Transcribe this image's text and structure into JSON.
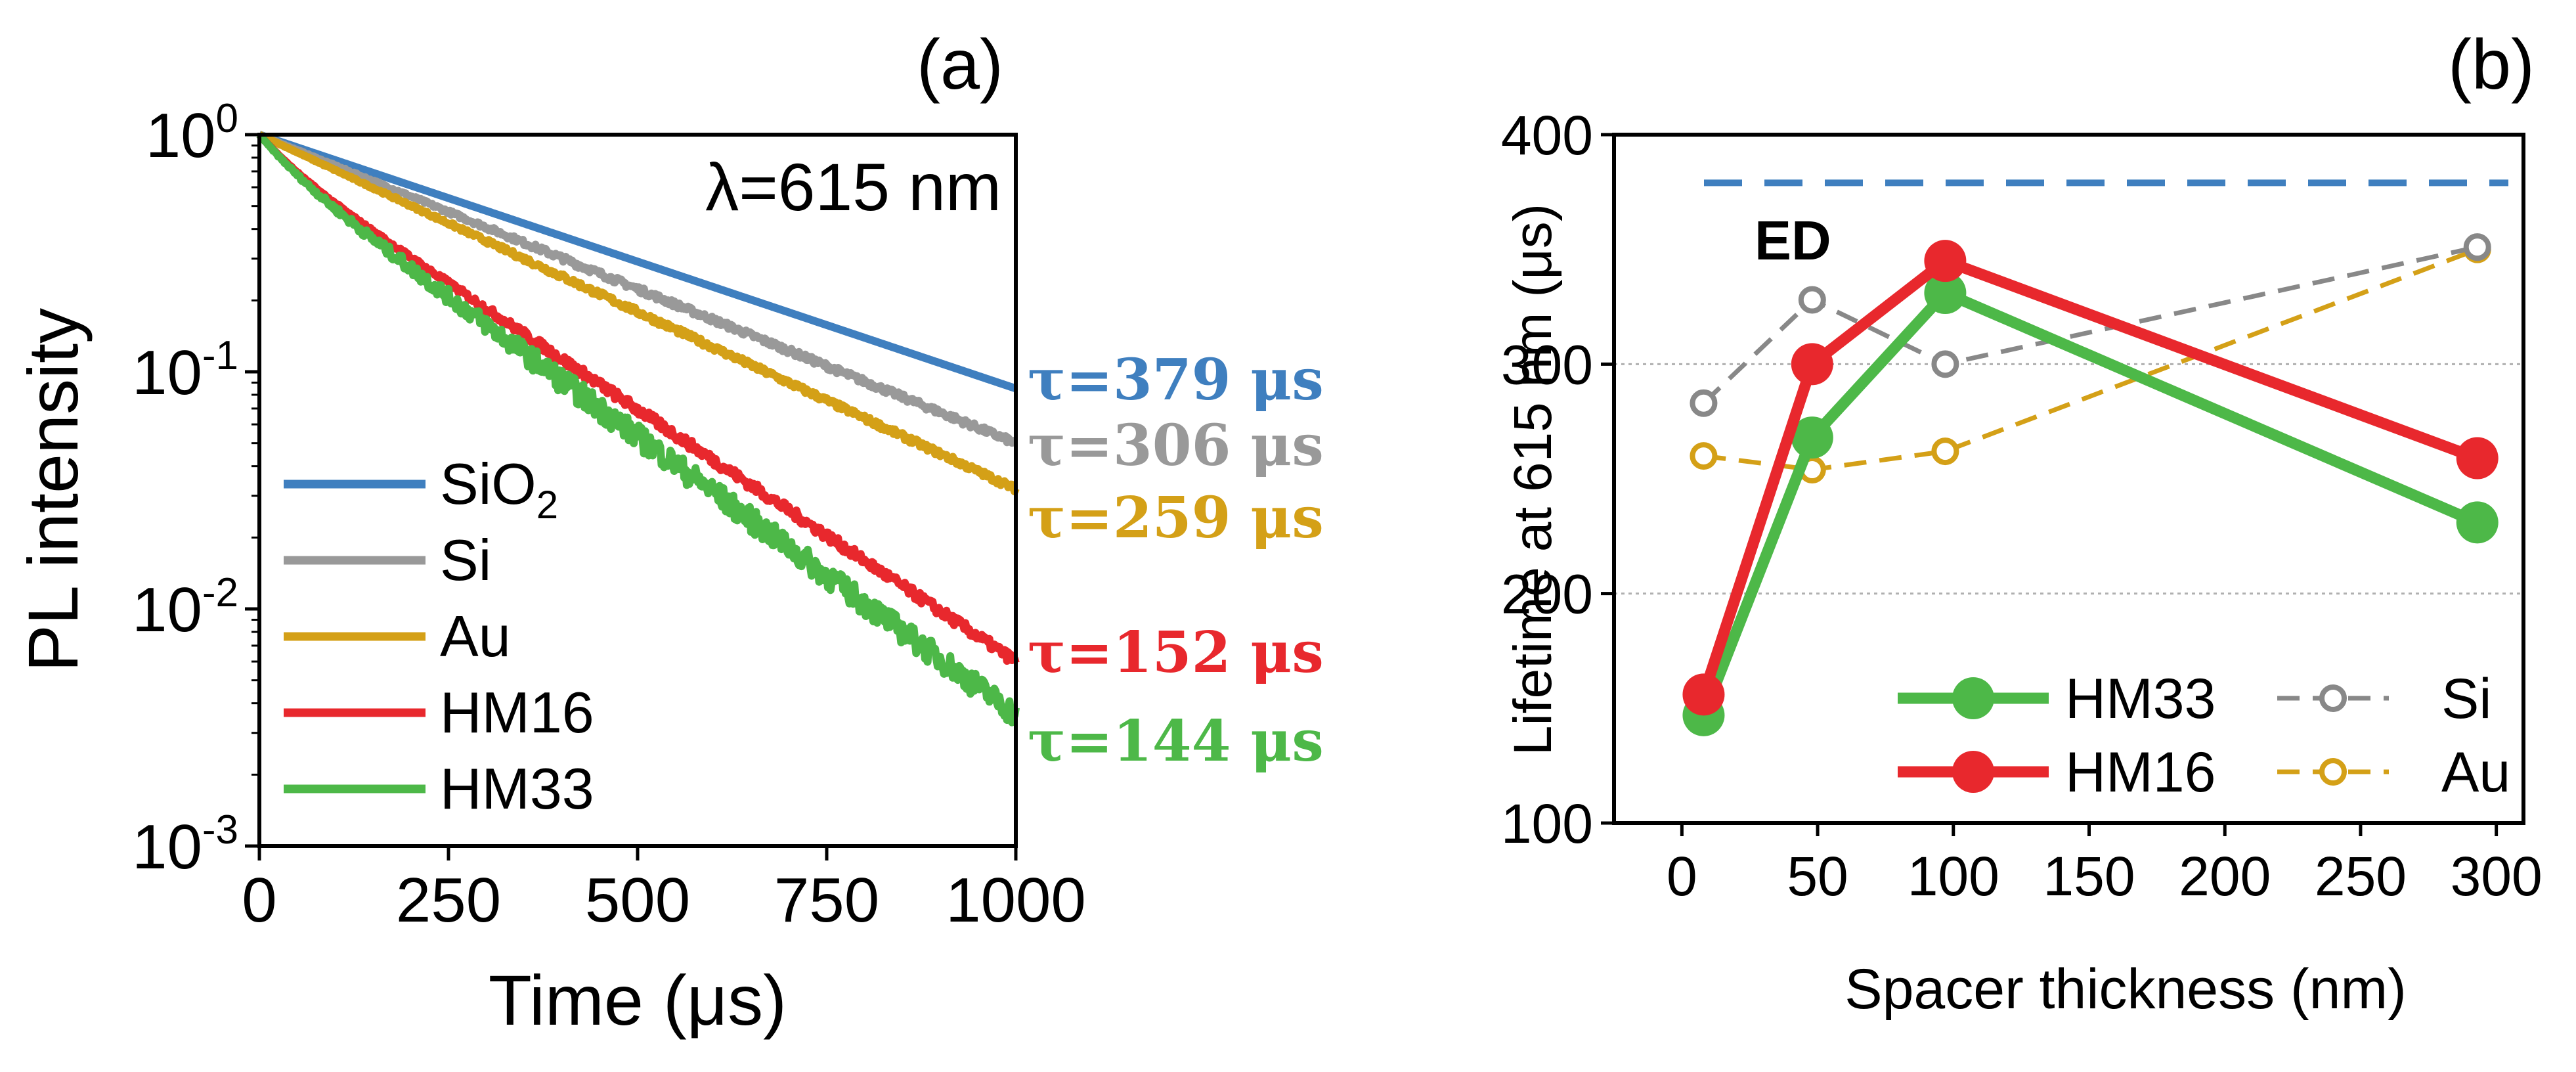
{
  "chart_data": [
    {
      "panel_label": "(a)",
      "type": "line",
      "yscale": "log",
      "xlabel": "Time (μs)",
      "ylabel": "PL intensity",
      "annotation": "λ=615 nm",
      "xlim": [
        0,
        1000
      ],
      "ylim": [
        0.001,
        1
      ],
      "xticks": [
        0,
        250,
        500,
        750,
        1000
      ],
      "yticks": [
        {
          "value": 1,
          "base": "10",
          "exp": "0"
        },
        {
          "value": 0.1,
          "base": "10",
          "exp": "-1"
        },
        {
          "value": 0.01,
          "base": "10",
          "exp": "-2"
        },
        {
          "value": 0.001,
          "base": "10",
          "exp": "-3"
        }
      ],
      "legend_position": "bottom-left",
      "series": [
        {
          "name": "SiO",
          "name_sub": "2",
          "color": "#3f7fbf",
          "tau_us": 379,
          "tau_label": "τ=379 μs",
          "end_value": 0.085,
          "noise": 0.0
        },
        {
          "name": "Si",
          "color": "#999999",
          "tau_us": 306,
          "tau_label": "τ=306 μs",
          "end_value": 0.05,
          "noise": 0.03
        },
        {
          "name": "Au",
          "color": "#d4a017",
          "tau_us": 259,
          "tau_label": "τ=259 μs",
          "end_value": 0.032,
          "noise": 0.03
        },
        {
          "name": "HM16",
          "color": "#e8282d",
          "tau_us": 152,
          "tau_label": "τ=152 μs",
          "end_value": 0.0075,
          "noise": 0.05
        },
        {
          "name": "HM33",
          "color": "#4db848",
          "tau_us": 144,
          "tau_label": "τ=144 μs",
          "end_value": 0.0045,
          "noise": 0.12
        }
      ]
    },
    {
      "panel_label": "(b)",
      "type": "line",
      "xlabel": "Spacer thickness (nm)",
      "ylabel": "Lifetime at 615 nm (μs)",
      "xlim": [
        -25,
        310
      ],
      "ylim": [
        100,
        400
      ],
      "xticks": [
        0,
        50,
        100,
        150,
        200,
        250,
        300
      ],
      "yticks": [
        100,
        200,
        300,
        400
      ],
      "grid_y": [
        200,
        300
      ],
      "reference_line": {
        "label": "ED",
        "value": 379,
        "color": "#3f7fbf",
        "style": "dashed"
      },
      "legend_position": "bottom-right",
      "series": [
        {
          "name": "HM33",
          "color": "#4db848",
          "marker": "filled-circle",
          "line": "solid",
          "x": [
            8,
            48,
            97,
            293
          ],
          "y": [
            147,
            268,
            331,
            231
          ]
        },
        {
          "name": "HM16",
          "color": "#e8282d",
          "marker": "filled-circle",
          "line": "solid",
          "x": [
            8,
            48,
            97,
            293
          ],
          "y": [
            156,
            300,
            345,
            259
          ]
        },
        {
          "name": "Si",
          "color": "#888888",
          "marker": "open-circle",
          "line": "dashed",
          "x": [
            8,
            48,
            97,
            293
          ],
          "y": [
            283,
            328,
            300,
            351
          ]
        },
        {
          "name": "Au",
          "color": "#d4a017",
          "marker": "open-circle",
          "line": "dashed",
          "x": [
            8,
            48,
            97,
            293
          ],
          "y": [
            260,
            254,
            262,
            350
          ]
        }
      ]
    }
  ]
}
